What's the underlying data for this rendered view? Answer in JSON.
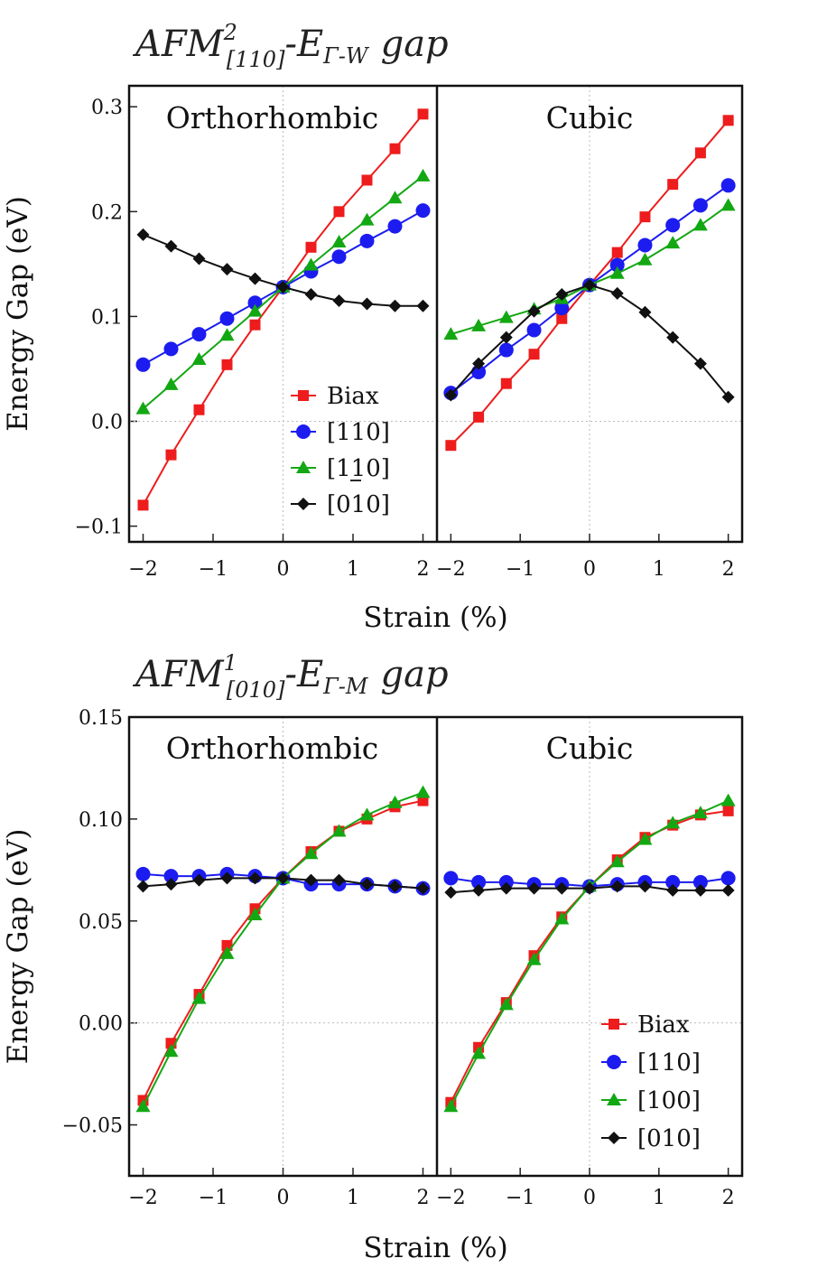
{
  "figure": {
    "top_title": {
      "main": "AFM",
      "sup": "2",
      "sub": "[110]",
      "dash_e": "-E",
      "sub2": "Γ-W",
      "tail": "gap"
    },
    "bottom_title": {
      "main": "AFM",
      "sup": "1",
      "sub": "[010]",
      "dash_e": "-E",
      "sub2": "Γ-M",
      "tail": "gap"
    }
  },
  "chart_data": [
    {
      "type": "line",
      "title": "AFM2[110] - EΓ-W gap",
      "ylabel": "Energy Gap (eV)",
      "xlabel": "Strain (%)",
      "ylim": [
        -0.115,
        0.32
      ],
      "yticks": [
        -0.1,
        0.0,
        0.1,
        0.2,
        0.3
      ],
      "ytick_labels": [
        "−0.1",
        "0.0",
        "0.1",
        "0.2",
        "0.3"
      ],
      "xlim": [
        -2.2,
        2.2
      ],
      "xticks": [
        -2,
        -1,
        0,
        1,
        2
      ],
      "xtick_labels": [
        "−2",
        "−1",
        "0",
        "1",
        "2"
      ],
      "x": [
        -2,
        -1.6,
        -1.2,
        -0.8,
        -0.4,
        0,
        0.4,
        0.8,
        1.2,
        1.6,
        2
      ],
      "legend_position": "bottom-right of left panel",
      "colors": {
        "Biax": "#ee1c1c",
        "[110]": "#1c1cf0",
        "[1-10]": "#13a813",
        "[010]": "#111111"
      },
      "legend": [
        {
          "label": "Biax",
          "marker": "square",
          "color": "#ee1c1c"
        },
        {
          "label": "[110]",
          "marker": "circle",
          "color": "#1c1cf0"
        },
        {
          "label": "[110]",
          "marker": "triangle",
          "color": "#13a813",
          "underline_digit": 1
        },
        {
          "label": "[010]",
          "marker": "diamond",
          "color": "#111111"
        }
      ],
      "panels": [
        {
          "title": "Orthorhombic",
          "series": [
            {
              "name": "Biax",
              "marker": "square",
              "color": "#ee1c1c",
              "values": [
                -0.08,
                -0.032,
                0.011,
                0.054,
                0.092,
                0.128,
                0.166,
                0.2,
                0.23,
                0.26,
                0.293
              ]
            },
            {
              "name": "[110]",
              "marker": "circle",
              "color": "#1c1cf0",
              "values": [
                0.054,
                0.069,
                0.083,
                0.098,
                0.113,
                0.128,
                0.143,
                0.157,
                0.172,
                0.186,
                0.201
              ]
            },
            {
              "name": "[1-10]",
              "marker": "triangle",
              "color": "#13a813",
              "values": [
                0.012,
                0.035,
                0.059,
                0.082,
                0.105,
                0.128,
                0.149,
                0.171,
                0.192,
                0.213,
                0.234
              ]
            },
            {
              "name": "[010]",
              "marker": "diamond",
              "color": "#111111",
              "values": [
                0.178,
                0.167,
                0.155,
                0.145,
                0.136,
                0.128,
                0.121,
                0.115,
                0.112,
                0.11,
                0.11
              ]
            }
          ]
        },
        {
          "title": "Cubic",
          "series": [
            {
              "name": "Biax",
              "marker": "square",
              "color": "#ee1c1c",
              "values": [
                -0.023,
                0.004,
                0.036,
                0.064,
                0.098,
                0.13,
                0.161,
                0.195,
                0.226,
                0.256,
                0.287
              ]
            },
            {
              "name": "[110]",
              "marker": "circle",
              "color": "#1c1cf0",
              "values": [
                0.027,
                0.047,
                0.068,
                0.087,
                0.108,
                0.13,
                0.149,
                0.168,
                0.187,
                0.206,
                0.225
              ]
            },
            {
              "name": "[1-10]",
              "marker": "triangle",
              "color": "#13a813",
              "values": [
                0.083,
                0.091,
                0.099,
                0.107,
                0.117,
                0.13,
                0.141,
                0.154,
                0.17,
                0.187,
                0.206
              ]
            },
            {
              "name": "[010]",
              "marker": "diamond",
              "color": "#111111",
              "values": [
                0.025,
                0.055,
                0.08,
                0.105,
                0.121,
                0.13,
                0.122,
                0.104,
                0.08,
                0.055,
                0.023
              ]
            }
          ]
        }
      ]
    },
    {
      "type": "line",
      "title": "AFM1[010] - EΓ-M gap",
      "ylabel": "Energy Gap (eV)",
      "xlabel": "Strain (%)",
      "ylim": [
        -0.075,
        0.15
      ],
      "yticks": [
        -0.05,
        0.0,
        0.05,
        0.1,
        0.15
      ],
      "ytick_labels": [
        "−0.05",
        "0.00",
        "0.05",
        "0.10",
        "0.15"
      ],
      "xlim": [
        -2.2,
        2.2
      ],
      "xticks": [
        -2,
        -1,
        0,
        1,
        2
      ],
      "xtick_labels": [
        "−2",
        "−1",
        "0",
        "1",
        "2"
      ],
      "x": [
        -2,
        -1.6,
        -1.2,
        -0.8,
        -0.4,
        0,
        0.4,
        0.8,
        1.2,
        1.6,
        2
      ],
      "legend_position": "bottom-right of right panel",
      "colors": {
        "Biax": "#ee1c1c",
        "[110]": "#1c1cf0",
        "[100]": "#13a813",
        "[010]": "#111111"
      },
      "legend": [
        {
          "label": "Biax",
          "marker": "square",
          "color": "#ee1c1c"
        },
        {
          "label": "[110]",
          "marker": "circle",
          "color": "#1c1cf0"
        },
        {
          "label": "[100]",
          "marker": "triangle",
          "color": "#13a813"
        },
        {
          "label": "[010]",
          "marker": "diamond",
          "color": "#111111"
        }
      ],
      "panels": [
        {
          "title": "Orthorhombic",
          "series": [
            {
              "name": "Biax",
              "marker": "square",
              "color": "#ee1c1c",
              "values": [
                -0.038,
                -0.01,
                0.014,
                0.038,
                0.056,
                0.071,
                0.084,
                0.094,
                0.1,
                0.106,
                0.109
              ]
            },
            {
              "name": "[110]",
              "marker": "circle",
              "color": "#1c1cf0",
              "values": [
                0.073,
                0.072,
                0.072,
                0.073,
                0.072,
                0.071,
                0.068,
                0.068,
                0.068,
                0.067,
                0.066
              ]
            },
            {
              "name": "[100]",
              "marker": "triangle",
              "color": "#13a813",
              "values": [
                -0.041,
                -0.014,
                0.012,
                0.034,
                0.053,
                0.071,
                0.083,
                0.094,
                0.102,
                0.108,
                0.113
              ]
            },
            {
              "name": "[010]",
              "marker": "diamond",
              "color": "#111111",
              "values": [
                0.067,
                0.068,
                0.07,
                0.071,
                0.071,
                0.071,
                0.07,
                0.07,
                0.068,
                0.067,
                0.066
              ]
            }
          ]
        },
        {
          "title": "Cubic",
          "series": [
            {
              "name": "Biax",
              "marker": "square",
              "color": "#ee1c1c",
              "values": [
                -0.039,
                -0.012,
                0.01,
                0.033,
                0.052,
                0.067,
                0.08,
                0.091,
                0.097,
                0.102,
                0.104
              ]
            },
            {
              "name": "[110]",
              "marker": "circle",
              "color": "#1c1cf0",
              "values": [
                0.071,
                0.069,
                0.069,
                0.068,
                0.068,
                0.067,
                0.068,
                0.069,
                0.069,
                0.069,
                0.071
              ]
            },
            {
              "name": "[100]",
              "marker": "triangle",
              "color": "#13a813",
              "values": [
                -0.041,
                -0.015,
                0.009,
                0.031,
                0.051,
                0.067,
                0.079,
                0.09,
                0.098,
                0.103,
                0.109
              ]
            },
            {
              "name": "[010]",
              "marker": "diamond",
              "color": "#111111",
              "values": [
                0.064,
                0.065,
                0.066,
                0.066,
                0.066,
                0.066,
                0.067,
                0.067,
                0.065,
                0.065,
                0.065
              ]
            }
          ]
        }
      ]
    }
  ]
}
